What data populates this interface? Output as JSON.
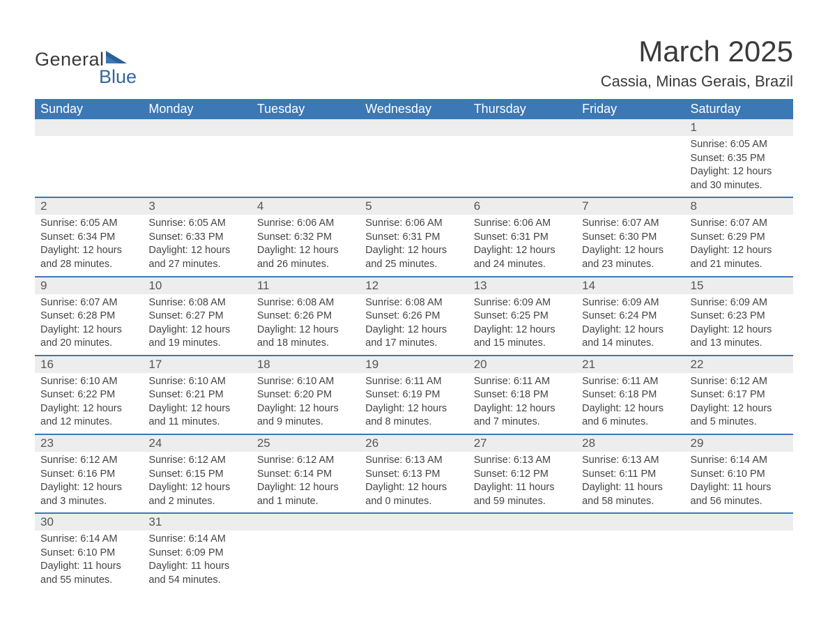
{
  "logo": {
    "text_general": "General",
    "text_blue": "Blue",
    "flag_color_dark": "#2b5f99",
    "flag_color_light": "#3b78b5"
  },
  "title": {
    "month_year": "March 2025",
    "location": "Cassia, Minas Gerais, Brazil"
  },
  "colors": {
    "header_bg": "#3b78b5",
    "header_text": "#ffffff",
    "daynum_bg": "#ededed",
    "row_border": "#3b78b5",
    "body_text": "#444444",
    "page_bg": "#ffffff"
  },
  "typography": {
    "title_fontsize": 42,
    "location_fontsize": 22,
    "header_fontsize": 18,
    "daynum_fontsize": 17,
    "cell_fontsize": 14.5,
    "font_family": "Arial"
  },
  "calendar": {
    "type": "table",
    "columns": [
      "Sunday",
      "Monday",
      "Tuesday",
      "Wednesday",
      "Thursday",
      "Friday",
      "Saturday"
    ],
    "labels": {
      "sunrise": "Sunrise:",
      "sunset": "Sunset:",
      "daylight": "Daylight:"
    },
    "weeks": [
      [
        null,
        null,
        null,
        null,
        null,
        null,
        {
          "n": "1",
          "sunrise": "6:05 AM",
          "sunset": "6:35 PM",
          "daylight": "12 hours and 30 minutes."
        }
      ],
      [
        {
          "n": "2",
          "sunrise": "6:05 AM",
          "sunset": "6:34 PM",
          "daylight": "12 hours and 28 minutes."
        },
        {
          "n": "3",
          "sunrise": "6:05 AM",
          "sunset": "6:33 PM",
          "daylight": "12 hours and 27 minutes."
        },
        {
          "n": "4",
          "sunrise": "6:06 AM",
          "sunset": "6:32 PM",
          "daylight": "12 hours and 26 minutes."
        },
        {
          "n": "5",
          "sunrise": "6:06 AM",
          "sunset": "6:31 PM",
          "daylight": "12 hours and 25 minutes."
        },
        {
          "n": "6",
          "sunrise": "6:06 AM",
          "sunset": "6:31 PM",
          "daylight": "12 hours and 24 minutes."
        },
        {
          "n": "7",
          "sunrise": "6:07 AM",
          "sunset": "6:30 PM",
          "daylight": "12 hours and 23 minutes."
        },
        {
          "n": "8",
          "sunrise": "6:07 AM",
          "sunset": "6:29 PM",
          "daylight": "12 hours and 21 minutes."
        }
      ],
      [
        {
          "n": "9",
          "sunrise": "6:07 AM",
          "sunset": "6:28 PM",
          "daylight": "12 hours and 20 minutes."
        },
        {
          "n": "10",
          "sunrise": "6:08 AM",
          "sunset": "6:27 PM",
          "daylight": "12 hours and 19 minutes."
        },
        {
          "n": "11",
          "sunrise": "6:08 AM",
          "sunset": "6:26 PM",
          "daylight": "12 hours and 18 minutes."
        },
        {
          "n": "12",
          "sunrise": "6:08 AM",
          "sunset": "6:26 PM",
          "daylight": "12 hours and 17 minutes."
        },
        {
          "n": "13",
          "sunrise": "6:09 AM",
          "sunset": "6:25 PM",
          "daylight": "12 hours and 15 minutes."
        },
        {
          "n": "14",
          "sunrise": "6:09 AM",
          "sunset": "6:24 PM",
          "daylight": "12 hours and 14 minutes."
        },
        {
          "n": "15",
          "sunrise": "6:09 AM",
          "sunset": "6:23 PM",
          "daylight": "12 hours and 13 minutes."
        }
      ],
      [
        {
          "n": "16",
          "sunrise": "6:10 AM",
          "sunset": "6:22 PM",
          "daylight": "12 hours and 12 minutes."
        },
        {
          "n": "17",
          "sunrise": "6:10 AM",
          "sunset": "6:21 PM",
          "daylight": "12 hours and 11 minutes."
        },
        {
          "n": "18",
          "sunrise": "6:10 AM",
          "sunset": "6:20 PM",
          "daylight": "12 hours and 9 minutes."
        },
        {
          "n": "19",
          "sunrise": "6:11 AM",
          "sunset": "6:19 PM",
          "daylight": "12 hours and 8 minutes."
        },
        {
          "n": "20",
          "sunrise": "6:11 AM",
          "sunset": "6:18 PM",
          "daylight": "12 hours and 7 minutes."
        },
        {
          "n": "21",
          "sunrise": "6:11 AM",
          "sunset": "6:18 PM",
          "daylight": "12 hours and 6 minutes."
        },
        {
          "n": "22",
          "sunrise": "6:12 AM",
          "sunset": "6:17 PM",
          "daylight": "12 hours and 5 minutes."
        }
      ],
      [
        {
          "n": "23",
          "sunrise": "6:12 AM",
          "sunset": "6:16 PM",
          "daylight": "12 hours and 3 minutes."
        },
        {
          "n": "24",
          "sunrise": "6:12 AM",
          "sunset": "6:15 PM",
          "daylight": "12 hours and 2 minutes."
        },
        {
          "n": "25",
          "sunrise": "6:12 AM",
          "sunset": "6:14 PM",
          "daylight": "12 hours and 1 minute."
        },
        {
          "n": "26",
          "sunrise": "6:13 AM",
          "sunset": "6:13 PM",
          "daylight": "12 hours and 0 minutes."
        },
        {
          "n": "27",
          "sunrise": "6:13 AM",
          "sunset": "6:12 PM",
          "daylight": "11 hours and 59 minutes."
        },
        {
          "n": "28",
          "sunrise": "6:13 AM",
          "sunset": "6:11 PM",
          "daylight": "11 hours and 58 minutes."
        },
        {
          "n": "29",
          "sunrise": "6:14 AM",
          "sunset": "6:10 PM",
          "daylight": "11 hours and 56 minutes."
        }
      ],
      [
        {
          "n": "30",
          "sunrise": "6:14 AM",
          "sunset": "6:10 PM",
          "daylight": "11 hours and 55 minutes."
        },
        {
          "n": "31",
          "sunrise": "6:14 AM",
          "sunset": "6:09 PM",
          "daylight": "11 hours and 54 minutes."
        },
        null,
        null,
        null,
        null,
        null
      ]
    ]
  }
}
